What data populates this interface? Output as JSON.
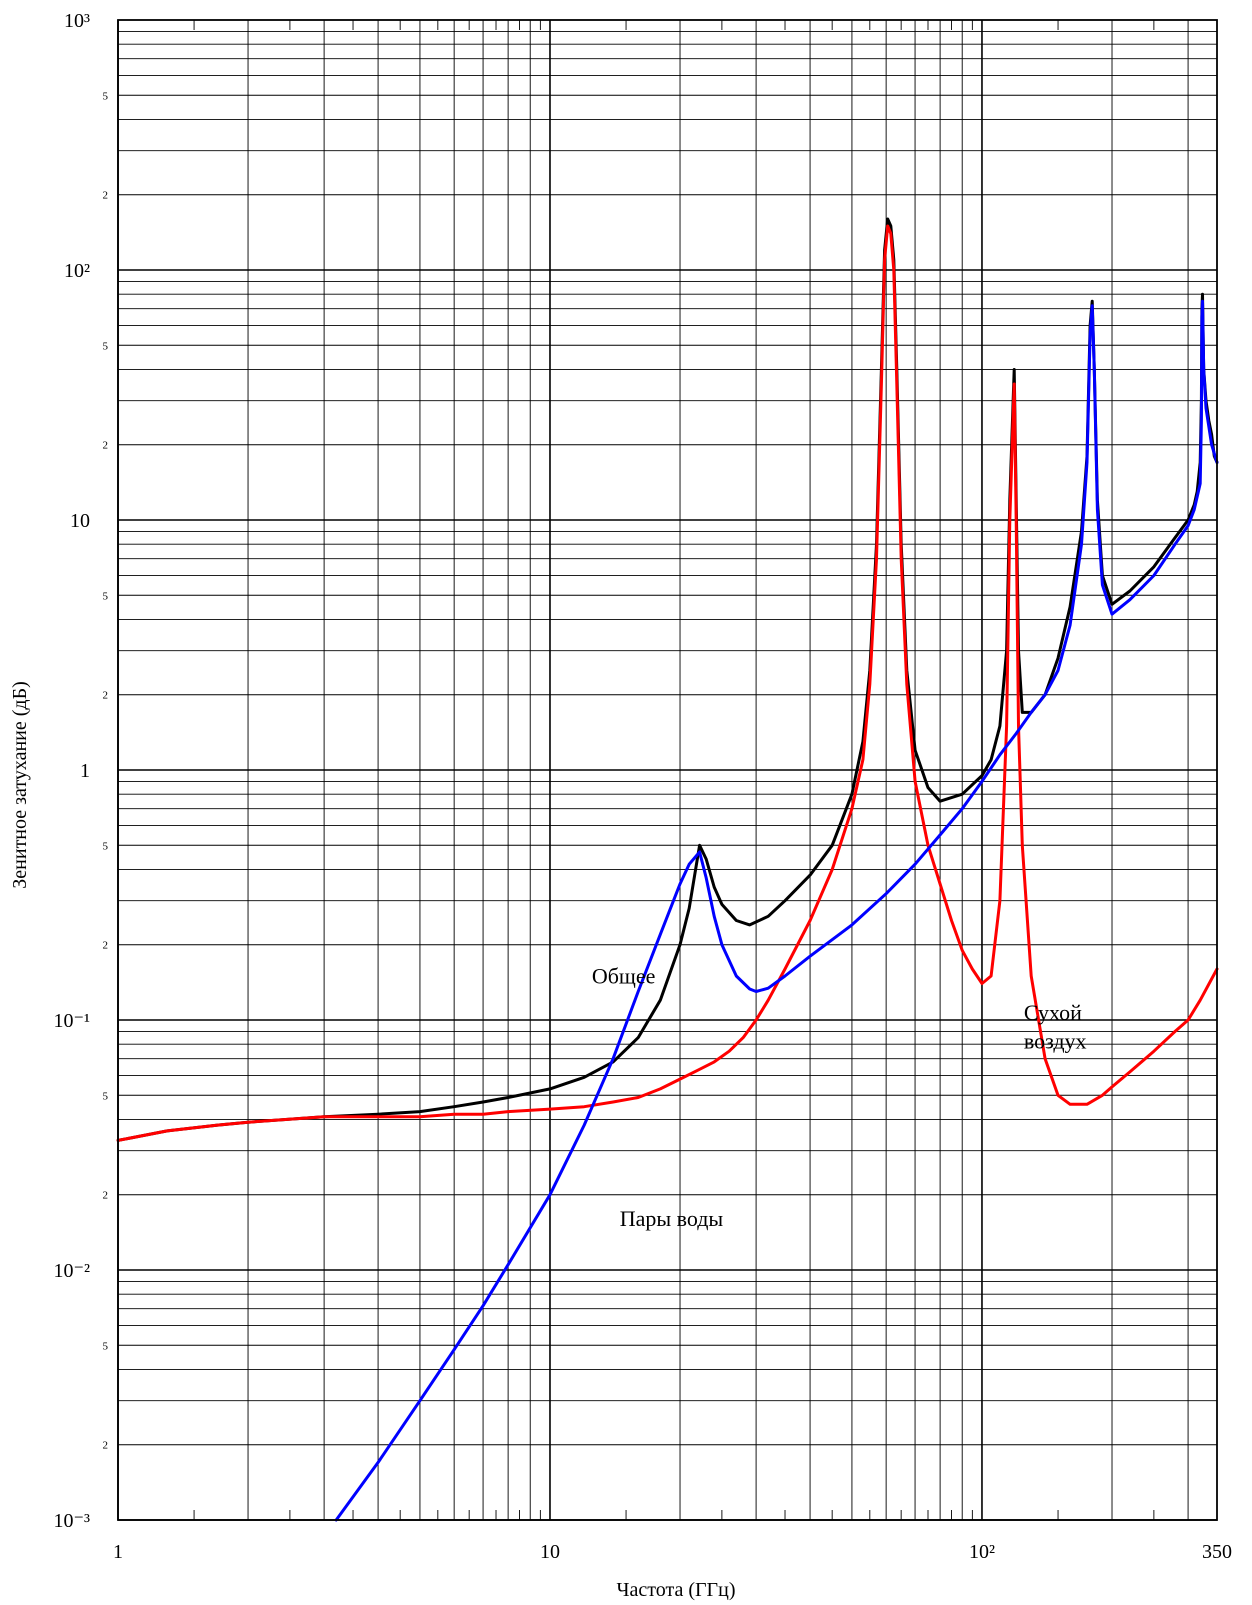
{
  "chart_data": {
    "type": "line",
    "title": "",
    "xlabel": "Частота (ГГц)",
    "ylabel": "Зенитное затухание (дБ)",
    "x_scale": "log",
    "y_scale": "log",
    "xlim": [
      1,
      350
    ],
    "ylim": [
      0.001,
      1000
    ],
    "grid": true,
    "x_tick_labels": [
      {
        "value": 1,
        "label": "1"
      },
      {
        "value": 10,
        "label": "10"
      },
      {
        "value": 100,
        "label": "10²"
      },
      {
        "value": 350,
        "label": "350"
      }
    ],
    "y_tick_labels": [
      {
        "value": 0.001,
        "label": "10⁻³"
      },
      {
        "value": 0.01,
        "label": "10⁻²"
      },
      {
        "value": 0.1,
        "label": "10⁻¹"
      },
      {
        "value": 1,
        "label": "1"
      },
      {
        "value": 10,
        "label": "10"
      },
      {
        "value": 100,
        "label": "10²"
      },
      {
        "value": 1000,
        "label": "10³"
      }
    ],
    "y_minor_labels": [
      "2",
      "5"
    ],
    "annotations": [
      {
        "text": "Общее",
        "x": 12.5,
        "y": 0.14
      },
      {
        "text": "Сухой",
        "x": 125,
        "y": 0.1
      },
      {
        "text": "воздух",
        "x": 125,
        "y": 0.077
      },
      {
        "text": "Пары воды",
        "x": 14.5,
        "y": 0.015
      }
    ],
    "series": [
      {
        "color": "#000000",
        "x": [
          1,
          1.3,
          1.7,
          2,
          3,
          4,
          5,
          6,
          7,
          8,
          10,
          12,
          14,
          16,
          18,
          20,
          21,
          22.2,
          23,
          24,
          25,
          27,
          29,
          32,
          35,
          40,
          45,
          50,
          53,
          55,
          57,
          58.5,
          59.5,
          60.5,
          61.5,
          62.5,
          63.5,
          65,
          67,
          70,
          75,
          80,
          90,
          100,
          105,
          110,
          114,
          116,
          118.75,
          120,
          121.5,
          124,
          130,
          140,
          150,
          160,
          170,
          175,
          178,
          180,
          182,
          185,
          190,
          200,
          220,
          250,
          280,
          300,
          310,
          315,
          320,
          322,
          323,
          324,
          326,
          330,
          335,
          340,
          345,
          350
        ],
        "y": [
          0.033,
          0.036,
          0.038,
          0.039,
          0.041,
          0.042,
          0.043,
          0.045,
          0.047,
          0.049,
          0.053,
          0.059,
          0.068,
          0.085,
          0.12,
          0.2,
          0.28,
          0.5,
          0.44,
          0.34,
          0.29,
          0.25,
          0.24,
          0.26,
          0.3,
          0.38,
          0.5,
          0.8,
          1.3,
          2.5,
          8,
          40,
          120,
          160,
          150,
          110,
          40,
          8,
          2.5,
          1.2,
          0.85,
          0.75,
          0.8,
          0.95,
          1.1,
          1.5,
          3,
          12,
          40,
          12,
          3,
          1.7,
          1.7,
          2.0,
          2.8,
          4.5,
          9,
          18,
          60,
          75,
          40,
          12,
          6,
          4.6,
          5.2,
          6.5,
          8.5,
          10,
          11.5,
          13,
          17,
          30,
          70,
          80,
          40,
          30,
          25,
          22,
          18,
          17
        ]
      },
      {
        "color": "#ff0000",
        "x": [
          1,
          1.3,
          1.7,
          2,
          3,
          4,
          5,
          6,
          7,
          8,
          10,
          12,
          14,
          16,
          18,
          20,
          22,
          24,
          26,
          28,
          30,
          32,
          35,
          40,
          45,
          50,
          53,
          55,
          57,
          58.5,
          59.5,
          60.5,
          61.5,
          62.5,
          63.5,
          65,
          67,
          70,
          75,
          80,
          85,
          90,
          95,
          100,
          105,
          110,
          114,
          116,
          118.75,
          120,
          121.5,
          124,
          130,
          140,
          150,
          160,
          175,
          190,
          200,
          220,
          250,
          280,
          300,
          320,
          350
        ],
        "y": [
          0.033,
          0.036,
          0.038,
          0.039,
          0.041,
          0.041,
          0.041,
          0.042,
          0.042,
          0.043,
          0.044,
          0.045,
          0.047,
          0.049,
          0.053,
          0.058,
          0.063,
          0.068,
          0.075,
          0.085,
          0.1,
          0.12,
          0.16,
          0.25,
          0.4,
          0.7,
          1.1,
          2.2,
          7,
          35,
          110,
          150,
          140,
          100,
          35,
          7,
          2.2,
          0.9,
          0.5,
          0.35,
          0.25,
          0.19,
          0.16,
          0.14,
          0.15,
          0.3,
          1.5,
          10,
          35,
          10,
          1.5,
          0.5,
          0.15,
          0.07,
          0.05,
          0.046,
          0.046,
          0.05,
          0.054,
          0.062,
          0.075,
          0.09,
          0.1,
          0.12,
          0.16
        ]
      },
      {
        "color": "#0000ff",
        "x": [
          3.2,
          4,
          5,
          6,
          7,
          8,
          10,
          12,
          14,
          16,
          18,
          20,
          21,
          22.2,
          23,
          24,
          25,
          27,
          29,
          30,
          32,
          35,
          40,
          50,
          60,
          70,
          80,
          90,
          100,
          110,
          120,
          130,
          140,
          150,
          160,
          170,
          175,
          178,
          180,
          182,
          185,
          190,
          200,
          220,
          250,
          280,
          300,
          310,
          320,
          322,
          323,
          324,
          326,
          330,
          340,
          350
        ],
        "y": [
          0.001,
          0.0017,
          0.003,
          0.0048,
          0.0072,
          0.0105,
          0.02,
          0.038,
          0.07,
          0.13,
          0.22,
          0.35,
          0.42,
          0.47,
          0.37,
          0.26,
          0.2,
          0.15,
          0.133,
          0.13,
          0.134,
          0.15,
          0.18,
          0.24,
          0.32,
          0.42,
          0.55,
          0.7,
          0.9,
          1.15,
          1.4,
          1.7,
          2.0,
          2.5,
          3.8,
          8,
          17,
          55,
          72,
          40,
          11,
          5.5,
          4.2,
          4.8,
          6.0,
          8,
          9.5,
          11,
          14,
          25,
          65,
          75,
          40,
          28,
          20,
          17
        ]
      }
    ]
  }
}
